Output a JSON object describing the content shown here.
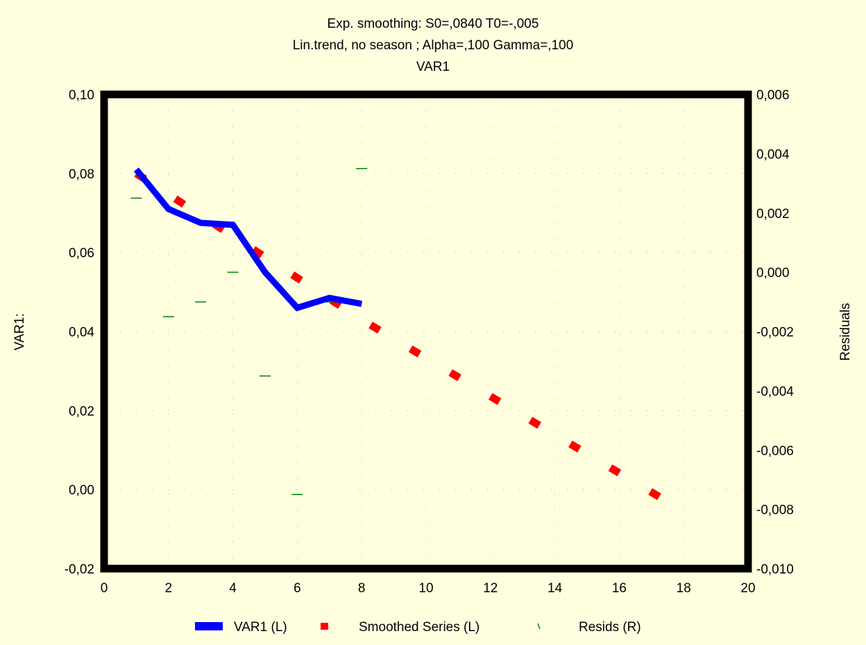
{
  "chart_data": {
    "type": "line",
    "title_lines": [
      "Exp. smoothing:  S0=,0840 T0=-,005",
      "Lin.trend, no season   ; Alpha=,100 Gamma=,100",
      "VAR1"
    ],
    "ylabel_left": "VAR1:",
    "ylabel_right": "Residuals",
    "xlim": [
      0,
      20
    ],
    "ylim_left": [
      -0.02,
      0.1
    ],
    "ylim_right": [
      -0.01,
      0.006
    ],
    "x_ticks": [
      "0",
      "2",
      "4",
      "6",
      "8",
      "10",
      "12",
      "14",
      "16",
      "18",
      "20"
    ],
    "y_ticks_left": [
      "-0,02",
      "0,00",
      "0,02",
      "0,04",
      "0,06",
      "0,08",
      "0,10"
    ],
    "y_ticks_right": [
      "-0,010",
      "-0,008",
      "-0,006",
      "-0,004",
      "-0,002",
      "0,000",
      "0,002",
      "0,004",
      "0,006"
    ],
    "grid": true,
    "legend_position": "bottom",
    "series": [
      {
        "name": "VAR1 (L)",
        "style": "line",
        "axis": "left",
        "color": "#0000FF",
        "x": [
          1,
          2,
          3,
          4,
          5,
          6,
          7,
          8
        ],
        "y": [
          0.081,
          0.071,
          0.0675,
          0.067,
          0.055,
          0.046,
          0.0485,
          0.047
        ]
      },
      {
        "name": "Smoothed Series (L)",
        "style": "dashed",
        "axis": "left",
        "color": "#FF0000",
        "x": [
          1,
          8,
          18
        ],
        "y": [
          0.08,
          0.043,
          -0.0055
        ]
      },
      {
        "name": "Resids (R)",
        "style": "dash-segments",
        "axis": "right",
        "color": "#008000",
        "x": [
          1,
          2,
          3,
          4,
          5,
          6,
          7,
          8
        ],
        "y": [
          0.0025,
          -0.0015,
          -0.001,
          0.0,
          -0.0035,
          -0.0075,
          -0.001,
          0.0035
        ]
      }
    ]
  }
}
